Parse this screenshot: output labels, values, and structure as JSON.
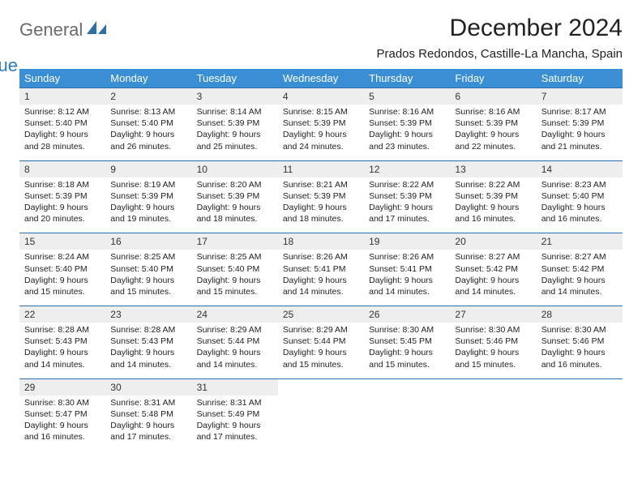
{
  "logo": {
    "text1": "General",
    "text2": "Blue"
  },
  "title": "December 2024",
  "location": "Prados Redondos, Castille-La Mancha, Spain",
  "colors": {
    "header_bg": "#3a8fd4",
    "header_text": "#ffffff",
    "daynum_bg": "#eeeeee",
    "week_border": "#2e6fa8",
    "body_text": "#222222",
    "logo_gray": "#6b6b6b",
    "logo_blue": "#2b7bbf"
  },
  "day_headers": [
    "Sunday",
    "Monday",
    "Tuesday",
    "Wednesday",
    "Thursday",
    "Friday",
    "Saturday"
  ],
  "weeks": [
    {
      "nums": [
        "1",
        "2",
        "3",
        "4",
        "5",
        "6",
        "7"
      ],
      "cells": [
        {
          "sunrise": "Sunrise: 8:12 AM",
          "sunset": "Sunset: 5:40 PM",
          "day1": "Daylight: 9 hours",
          "day2": "and 28 minutes."
        },
        {
          "sunrise": "Sunrise: 8:13 AM",
          "sunset": "Sunset: 5:40 PM",
          "day1": "Daylight: 9 hours",
          "day2": "and 26 minutes."
        },
        {
          "sunrise": "Sunrise: 8:14 AM",
          "sunset": "Sunset: 5:39 PM",
          "day1": "Daylight: 9 hours",
          "day2": "and 25 minutes."
        },
        {
          "sunrise": "Sunrise: 8:15 AM",
          "sunset": "Sunset: 5:39 PM",
          "day1": "Daylight: 9 hours",
          "day2": "and 24 minutes."
        },
        {
          "sunrise": "Sunrise: 8:16 AM",
          "sunset": "Sunset: 5:39 PM",
          "day1": "Daylight: 9 hours",
          "day2": "and 23 minutes."
        },
        {
          "sunrise": "Sunrise: 8:16 AM",
          "sunset": "Sunset: 5:39 PM",
          "day1": "Daylight: 9 hours",
          "day2": "and 22 minutes."
        },
        {
          "sunrise": "Sunrise: 8:17 AM",
          "sunset": "Sunset: 5:39 PM",
          "day1": "Daylight: 9 hours",
          "day2": "and 21 minutes."
        }
      ]
    },
    {
      "nums": [
        "8",
        "9",
        "10",
        "11",
        "12",
        "13",
        "14"
      ],
      "cells": [
        {
          "sunrise": "Sunrise: 8:18 AM",
          "sunset": "Sunset: 5:39 PM",
          "day1": "Daylight: 9 hours",
          "day2": "and 20 minutes."
        },
        {
          "sunrise": "Sunrise: 8:19 AM",
          "sunset": "Sunset: 5:39 PM",
          "day1": "Daylight: 9 hours",
          "day2": "and 19 minutes."
        },
        {
          "sunrise": "Sunrise: 8:20 AM",
          "sunset": "Sunset: 5:39 PM",
          "day1": "Daylight: 9 hours",
          "day2": "and 18 minutes."
        },
        {
          "sunrise": "Sunrise: 8:21 AM",
          "sunset": "Sunset: 5:39 PM",
          "day1": "Daylight: 9 hours",
          "day2": "and 18 minutes."
        },
        {
          "sunrise": "Sunrise: 8:22 AM",
          "sunset": "Sunset: 5:39 PM",
          "day1": "Daylight: 9 hours",
          "day2": "and 17 minutes."
        },
        {
          "sunrise": "Sunrise: 8:22 AM",
          "sunset": "Sunset: 5:39 PM",
          "day1": "Daylight: 9 hours",
          "day2": "and 16 minutes."
        },
        {
          "sunrise": "Sunrise: 8:23 AM",
          "sunset": "Sunset: 5:40 PM",
          "day1": "Daylight: 9 hours",
          "day2": "and 16 minutes."
        }
      ]
    },
    {
      "nums": [
        "15",
        "16",
        "17",
        "18",
        "19",
        "20",
        "21"
      ],
      "cells": [
        {
          "sunrise": "Sunrise: 8:24 AM",
          "sunset": "Sunset: 5:40 PM",
          "day1": "Daylight: 9 hours",
          "day2": "and 15 minutes."
        },
        {
          "sunrise": "Sunrise: 8:25 AM",
          "sunset": "Sunset: 5:40 PM",
          "day1": "Daylight: 9 hours",
          "day2": "and 15 minutes."
        },
        {
          "sunrise": "Sunrise: 8:25 AM",
          "sunset": "Sunset: 5:40 PM",
          "day1": "Daylight: 9 hours",
          "day2": "and 15 minutes."
        },
        {
          "sunrise": "Sunrise: 8:26 AM",
          "sunset": "Sunset: 5:41 PM",
          "day1": "Daylight: 9 hours",
          "day2": "and 14 minutes."
        },
        {
          "sunrise": "Sunrise: 8:26 AM",
          "sunset": "Sunset: 5:41 PM",
          "day1": "Daylight: 9 hours",
          "day2": "and 14 minutes."
        },
        {
          "sunrise": "Sunrise: 8:27 AM",
          "sunset": "Sunset: 5:42 PM",
          "day1": "Daylight: 9 hours",
          "day2": "and 14 minutes."
        },
        {
          "sunrise": "Sunrise: 8:27 AM",
          "sunset": "Sunset: 5:42 PM",
          "day1": "Daylight: 9 hours",
          "day2": "and 14 minutes."
        }
      ]
    },
    {
      "nums": [
        "22",
        "23",
        "24",
        "25",
        "26",
        "27",
        "28"
      ],
      "cells": [
        {
          "sunrise": "Sunrise: 8:28 AM",
          "sunset": "Sunset: 5:43 PM",
          "day1": "Daylight: 9 hours",
          "day2": "and 14 minutes."
        },
        {
          "sunrise": "Sunrise: 8:28 AM",
          "sunset": "Sunset: 5:43 PM",
          "day1": "Daylight: 9 hours",
          "day2": "and 14 minutes."
        },
        {
          "sunrise": "Sunrise: 8:29 AM",
          "sunset": "Sunset: 5:44 PM",
          "day1": "Daylight: 9 hours",
          "day2": "and 14 minutes."
        },
        {
          "sunrise": "Sunrise: 8:29 AM",
          "sunset": "Sunset: 5:44 PM",
          "day1": "Daylight: 9 hours",
          "day2": "and 15 minutes."
        },
        {
          "sunrise": "Sunrise: 8:30 AM",
          "sunset": "Sunset: 5:45 PM",
          "day1": "Daylight: 9 hours",
          "day2": "and 15 minutes."
        },
        {
          "sunrise": "Sunrise: 8:30 AM",
          "sunset": "Sunset: 5:46 PM",
          "day1": "Daylight: 9 hours",
          "day2": "and 15 minutes."
        },
        {
          "sunrise": "Sunrise: 8:30 AM",
          "sunset": "Sunset: 5:46 PM",
          "day1": "Daylight: 9 hours",
          "day2": "and 16 minutes."
        }
      ]
    },
    {
      "nums": [
        "29",
        "30",
        "31",
        "",
        "",
        "",
        ""
      ],
      "cells": [
        {
          "sunrise": "Sunrise: 8:30 AM",
          "sunset": "Sunset: 5:47 PM",
          "day1": "Daylight: 9 hours",
          "day2": "and 16 minutes."
        },
        {
          "sunrise": "Sunrise: 8:31 AM",
          "sunset": "Sunset: 5:48 PM",
          "day1": "Daylight: 9 hours",
          "day2": "and 17 minutes."
        },
        {
          "sunrise": "Sunrise: 8:31 AM",
          "sunset": "Sunset: 5:49 PM",
          "day1": "Daylight: 9 hours",
          "day2": "and 17 minutes."
        },
        {
          "sunrise": "",
          "sunset": "",
          "day1": "",
          "day2": ""
        },
        {
          "sunrise": "",
          "sunset": "",
          "day1": "",
          "day2": ""
        },
        {
          "sunrise": "",
          "sunset": "",
          "day1": "",
          "day2": ""
        },
        {
          "sunrise": "",
          "sunset": "",
          "day1": "",
          "day2": ""
        }
      ]
    }
  ]
}
